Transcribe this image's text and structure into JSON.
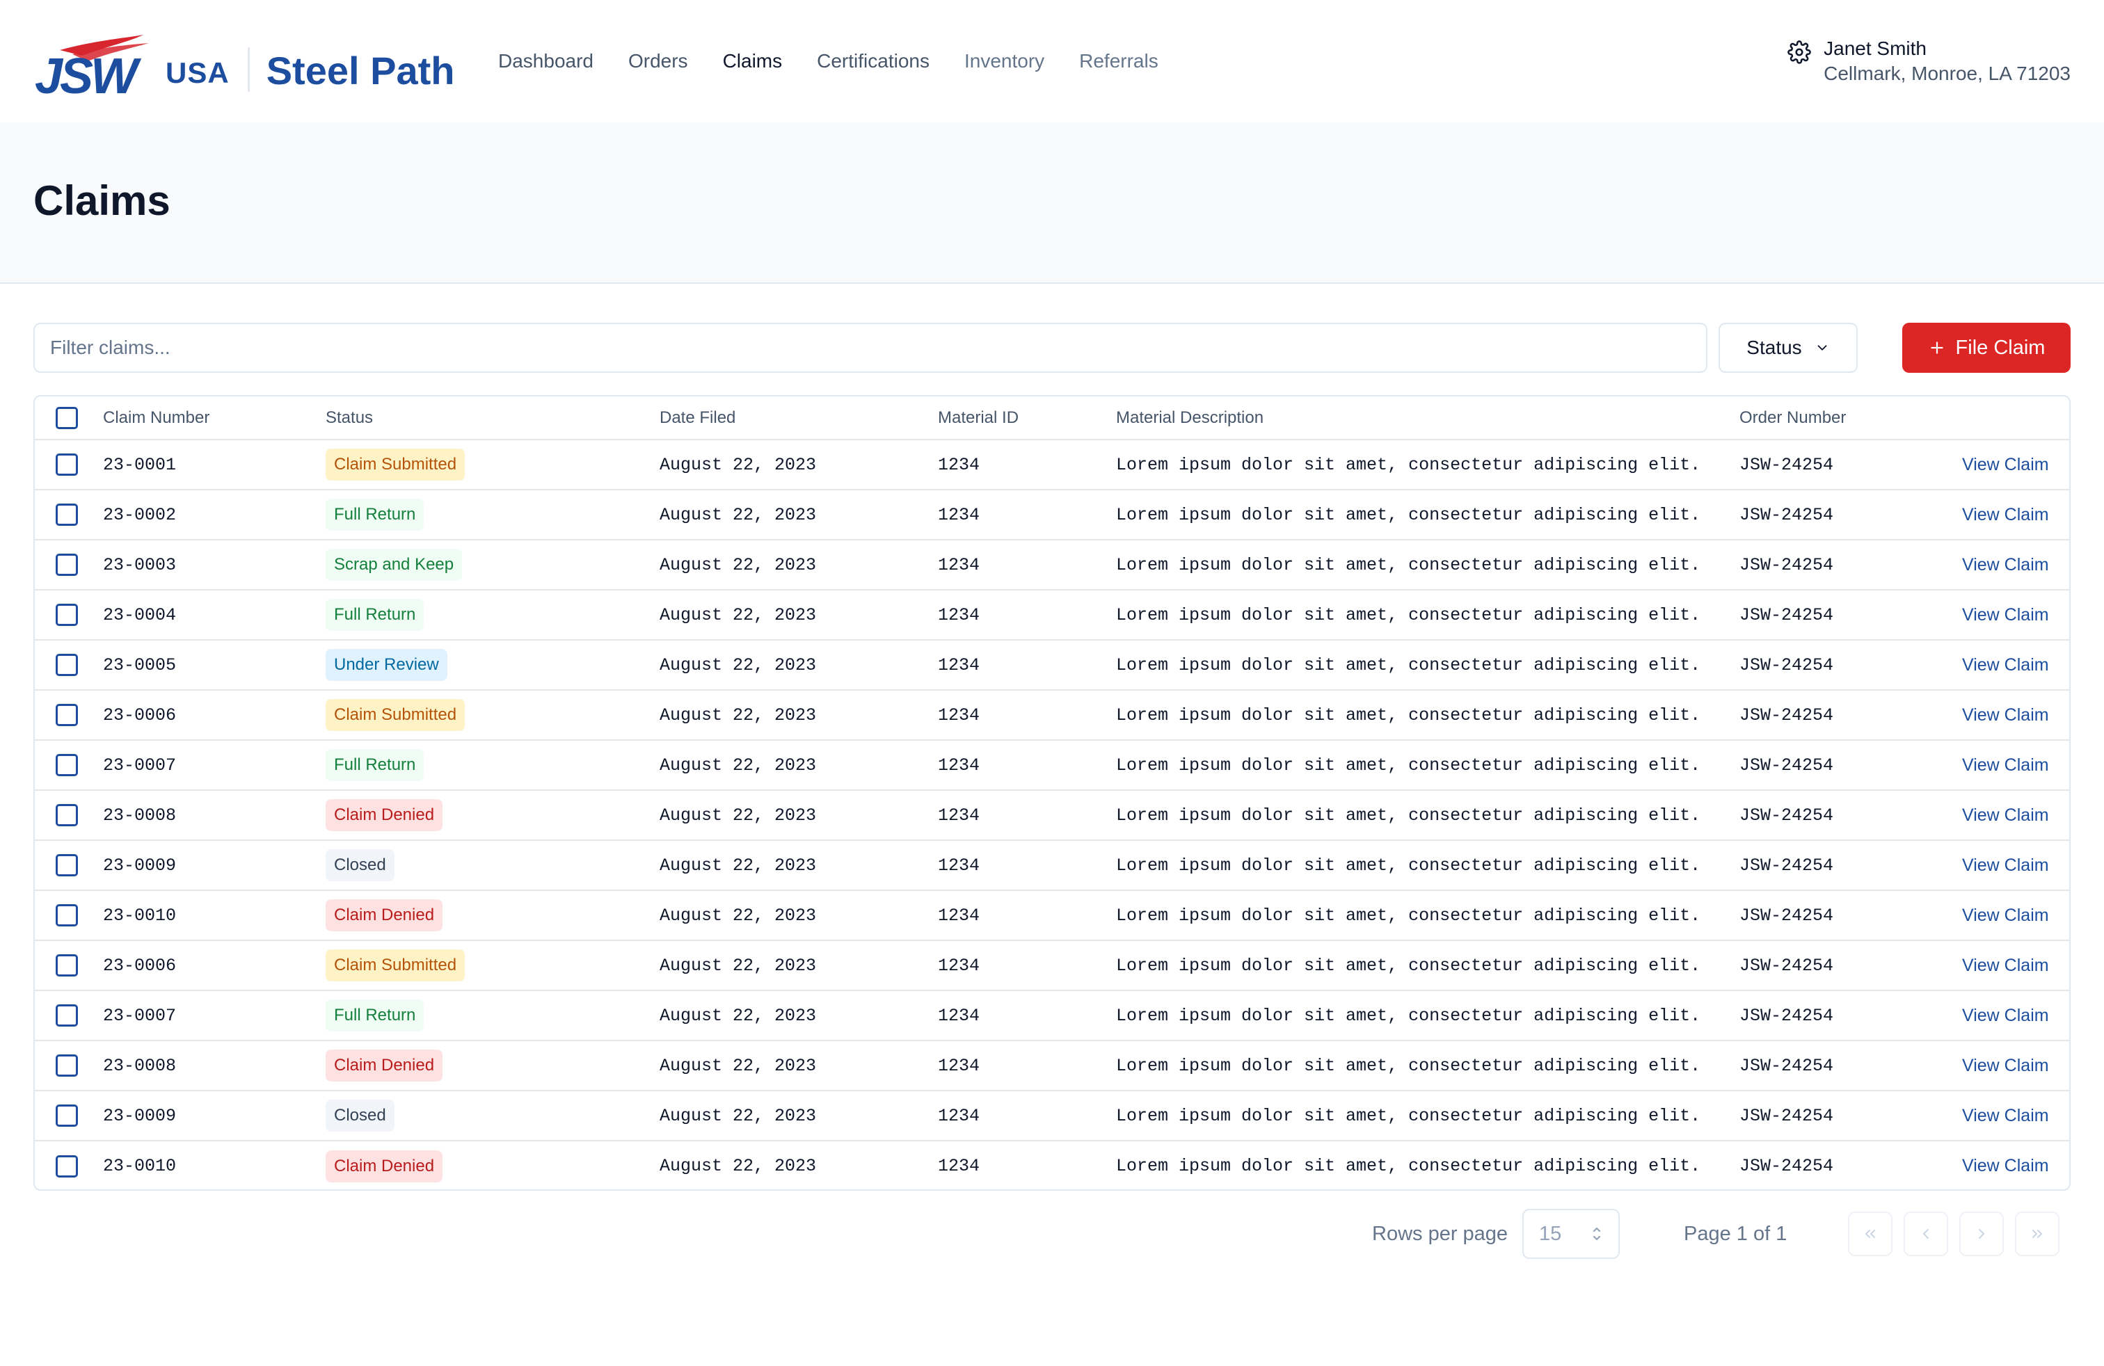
{
  "brand": {
    "logo_text": "JSW",
    "logo_region": "USA",
    "product_name": "Steel Path",
    "logo_colors": {
      "blue": "#1d4d9f",
      "red": "#d7262e"
    }
  },
  "nav": {
    "items": [
      {
        "label": "Dashboard",
        "state": "default"
      },
      {
        "label": "Orders",
        "state": "default"
      },
      {
        "label": "Claims",
        "state": "active"
      },
      {
        "label": "Certifications",
        "state": "default"
      },
      {
        "label": "Inventory",
        "state": "muted"
      },
      {
        "label": "Referrals",
        "state": "muted"
      }
    ]
  },
  "user": {
    "name": "Janet Smith",
    "location": "Cellmark, Monroe, LA 71203",
    "icon": "gear-icon"
  },
  "page": {
    "title": "Claims"
  },
  "toolbar": {
    "filter_placeholder": "Filter claims...",
    "filter_value": "",
    "status_label": "Status",
    "file_claim_label": "File Claim",
    "file_claim_color": "#dc2626"
  },
  "table": {
    "columns": [
      "Claim Number",
      "Status",
      "Date Filed",
      "Material ID",
      "Material Description",
      "Order Number"
    ],
    "action_label": "View Claim",
    "rows": [
      {
        "claim": "23-0001",
        "status": "Claim Submitted",
        "status_kind": "submitted",
        "date": "August 22, 2023",
        "material_id": "1234",
        "description": "Lorem ipsum dolor sit amet, consectetur adipiscing elit.",
        "order": "JSW-24254"
      },
      {
        "claim": "23-0002",
        "status": "Full Return",
        "status_kind": "full",
        "date": "August 22, 2023",
        "material_id": "1234",
        "description": "Lorem ipsum dolor sit amet, consectetur adipiscing elit.",
        "order": "JSW-24254"
      },
      {
        "claim": "23-0003",
        "status": "Scrap and Keep",
        "status_kind": "scrap",
        "date": "August 22, 2023",
        "material_id": "1234",
        "description": "Lorem ipsum dolor sit amet, consectetur adipiscing elit.",
        "order": "JSW-24254"
      },
      {
        "claim": "23-0004",
        "status": "Full Return",
        "status_kind": "full",
        "date": "August 22, 2023",
        "material_id": "1234",
        "description": "Lorem ipsum dolor sit amet, consectetur adipiscing elit.",
        "order": "JSW-24254"
      },
      {
        "claim": "23-0005",
        "status": "Under Review",
        "status_kind": "review",
        "date": "August 22, 2023",
        "material_id": "1234",
        "description": "Lorem ipsum dolor sit amet, consectetur adipiscing elit.",
        "order": "JSW-24254"
      },
      {
        "claim": "23-0006",
        "status": "Claim Submitted",
        "status_kind": "submitted",
        "date": "August 22, 2023",
        "material_id": "1234",
        "description": "Lorem ipsum dolor sit amet, consectetur adipiscing elit.",
        "order": "JSW-24254"
      },
      {
        "claim": "23-0007",
        "status": "Full Return",
        "status_kind": "full",
        "date": "August 22, 2023",
        "material_id": "1234",
        "description": "Lorem ipsum dolor sit amet, consectetur adipiscing elit.",
        "order": "JSW-24254"
      },
      {
        "claim": "23-0008",
        "status": "Claim Denied",
        "status_kind": "denied",
        "date": "August 22, 2023",
        "material_id": "1234",
        "description": "Lorem ipsum dolor sit amet, consectetur adipiscing elit.",
        "order": "JSW-24254"
      },
      {
        "claim": "23-0009",
        "status": "Closed",
        "status_kind": "closed",
        "date": "August 22, 2023",
        "material_id": "1234",
        "description": "Lorem ipsum dolor sit amet, consectetur adipiscing elit.",
        "order": "JSW-24254"
      },
      {
        "claim": "23-0010",
        "status": "Claim Denied",
        "status_kind": "denied",
        "date": "August 22, 2023",
        "material_id": "1234",
        "description": "Lorem ipsum dolor sit amet, consectetur adipiscing elit.",
        "order": "JSW-24254"
      },
      {
        "claim": "23-0006",
        "status": "Claim Submitted",
        "status_kind": "submitted",
        "date": "August 22, 2023",
        "material_id": "1234",
        "description": "Lorem ipsum dolor sit amet, consectetur adipiscing elit.",
        "order": "JSW-24254"
      },
      {
        "claim": "23-0007",
        "status": "Full Return",
        "status_kind": "full",
        "date": "August 22, 2023",
        "material_id": "1234",
        "description": "Lorem ipsum dolor sit amet, consectetur adipiscing elit.",
        "order": "JSW-24254"
      },
      {
        "claim": "23-0008",
        "status": "Claim Denied",
        "status_kind": "denied",
        "date": "August 22, 2023",
        "material_id": "1234",
        "description": "Lorem ipsum dolor sit amet, consectetur adipiscing elit.",
        "order": "JSW-24254"
      },
      {
        "claim": "23-0009",
        "status": "Closed",
        "status_kind": "closed",
        "date": "August 22, 2023",
        "material_id": "1234",
        "description": "Lorem ipsum dolor sit amet, consectetur adipiscing elit.",
        "order": "JSW-24254"
      },
      {
        "claim": "23-0010",
        "status": "Claim Denied",
        "status_kind": "denied",
        "date": "August 22, 2023",
        "material_id": "1234",
        "description": "Lorem ipsum dolor sit amet, consectetur adipiscing elit.",
        "order": "JSW-24254"
      }
    ]
  },
  "pagination": {
    "rows_per_page_label": "Rows per page",
    "rows_per_page_value": "15",
    "page_label": "Page 1 of 1",
    "buttons": [
      "first-page-icon",
      "previous-page-icon",
      "next-page-icon",
      "last-page-icon"
    ]
  }
}
